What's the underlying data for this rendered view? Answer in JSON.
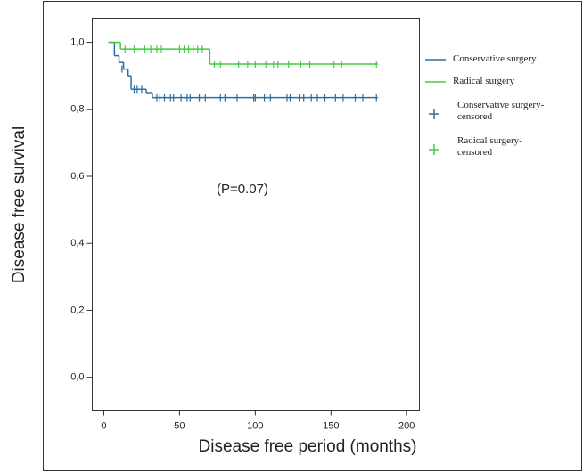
{
  "chart_data": {
    "type": "step",
    "y_label": "Disease free survival",
    "x_label": "Disease free period (months)",
    "annotation": "(P=0.07)",
    "xlim": [
      -7.65,
      208.4
    ],
    "ylim": [
      -0.098,
      1.072
    ],
    "xticks": [
      0,
      50,
      100,
      150,
      200
    ],
    "yticks": [
      {
        "value": 0.0,
        "label": "0,0"
      },
      {
        "value": 0.2,
        "label": "0,2"
      },
      {
        "value": 0.4,
        "label": "0,4"
      },
      {
        "value": 0.6,
        "label": "0,6"
      },
      {
        "value": 0.8,
        "label": "0,8"
      },
      {
        "value": 1.0,
        "label": "1,0"
      }
    ],
    "series": [
      {
        "name": "Conservative surgery",
        "color": "#2f6fa0",
        "x": [
          3,
          7,
          10,
          13,
          16,
          18,
          28,
          32,
          180
        ],
        "values": [
          1.0,
          0.96,
          0.94,
          0.92,
          0.9,
          0.86,
          0.85,
          0.835,
          0.835
        ]
      },
      {
        "name": "Radical surgery",
        "color": "#44cc44",
        "x": [
          3,
          11,
          70,
          180
        ],
        "values": [
          1.0,
          0.98,
          0.935,
          0.935
        ]
      },
      {
        "name": "Conservative surgery-censored",
        "color": "#2f6fa0",
        "marker": "+",
        "x": [
          12,
          20,
          22,
          25,
          35,
          37,
          40,
          44,
          46,
          51,
          55,
          57,
          63,
          67,
          77,
          80,
          88,
          99,
          100,
          106,
          110,
          121,
          123,
          129,
          132,
          137,
          141,
          146,
          153,
          158,
          166,
          171,
          180
        ],
        "values": [
          0.92,
          0.86,
          0.86,
          0.86,
          0.835,
          0.835,
          0.835,
          0.835,
          0.835,
          0.835,
          0.835,
          0.835,
          0.835,
          0.835,
          0.835,
          0.835,
          0.835,
          0.835,
          0.835,
          0.835,
          0.835,
          0.835,
          0.835,
          0.835,
          0.835,
          0.835,
          0.835,
          0.835,
          0.835,
          0.835,
          0.835,
          0.835,
          0.835
        ]
      },
      {
        "name": "Radical surgery-censored",
        "color": "#44cc44",
        "marker": "+",
        "x": [
          14,
          20,
          27,
          31,
          35,
          38,
          50,
          53,
          56,
          59,
          62,
          65,
          73,
          77,
          89,
          95,
          100,
          107,
          112,
          115,
          122,
          130,
          136,
          152,
          157,
          180
        ],
        "values": [
          0.98,
          0.98,
          0.98,
          0.98,
          0.98,
          0.98,
          0.98,
          0.98,
          0.98,
          0.98,
          0.98,
          0.98,
          0.935,
          0.935,
          0.935,
          0.935,
          0.935,
          0.935,
          0.935,
          0.935,
          0.935,
          0.935,
          0.935,
          0.935,
          0.935,
          0.935
        ]
      }
    ]
  }
}
